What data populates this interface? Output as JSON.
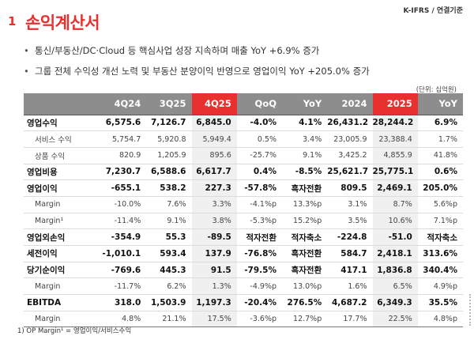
{
  "header": {
    "slide_number": "1",
    "title": "손익계산서",
    "standard": "K-IFRS / 연결기준"
  },
  "bullets": [
    "통신/부동산/DC·Cloud 등 핵심사업 성장 지속하며 매출 YoY +6.9% 증가",
    "그룹 전체 수익성 개선 노력 및 부동산 분양이익 반영으로 영업이익 YoY +205.0% 증가"
  ],
  "unit_label": "(단위: 십억원)",
  "table": {
    "columns": [
      "",
      "4Q24",
      "3Q25",
      "4Q25",
      "QoQ",
      "YoY",
      "2024",
      "2025",
      "YoY"
    ],
    "highlight_color": "#e8302f",
    "rows": [
      {
        "label": "영업수익",
        "cells": [
          "6,575.6",
          "7,126.7",
          "6,845.0",
          "-4.0%",
          "4.1%",
          "26,431.2",
          "28,244.2",
          "6.9%"
        ]
      },
      {
        "label": "서비스 수익",
        "cells": [
          "5,754.7",
          "5,920.8",
          "5,949.4",
          "0.5%",
          "3.4%",
          "23,005.9",
          "23,388.4",
          "1.7%"
        ]
      },
      {
        "label": "상품 수익",
        "cells": [
          "820.9",
          "1,205.9",
          "895.6",
          "-25.7%",
          "9.1%",
          "3,425.2",
          "4,855.9",
          "41.8%"
        ]
      },
      {
        "label": "영업비용",
        "cells": [
          "7,230.7",
          "6,588.6",
          "6,617.7",
          "0.4%",
          "-8.5%",
          "25,621.7",
          "25,775.1",
          "0.6%"
        ]
      },
      {
        "label": "영업이익",
        "cells": [
          "-655.1",
          "538.2",
          "227.3",
          "-57.8%",
          "흑자전환",
          "809.5",
          "2,469.1",
          "205.0%"
        ]
      },
      {
        "label": "Margin",
        "cells": [
          "-10.0%",
          "7.6%",
          "3.3%",
          "-4.1%p",
          "13.3%p",
          "3.1%",
          "8.7%",
          "5.6%p"
        ]
      },
      {
        "label": "Margin¹",
        "cells": [
          "-11.4%",
          "9.1%",
          "3.8%",
          "-5.3%p",
          "15.2%p",
          "3.5%",
          "10.6%",
          "7.1%p"
        ]
      },
      {
        "label": "영업외손익",
        "cells": [
          "-354.9",
          "55.3",
          "-89.5",
          "적자전환",
          "적자축소",
          "-224.8",
          "-51.0",
          "적자축소"
        ]
      },
      {
        "label": "세전이익",
        "cells": [
          "-1,010.1",
          "593.4",
          "137.9",
          "-76.8%",
          "흑자전환",
          "584.7",
          "2,418.1",
          "313.6%"
        ]
      },
      {
        "label": "당기순이익",
        "cells": [
          "-769.6",
          "445.3",
          "91.5",
          "-79.5%",
          "흑자전환",
          "417.1",
          "1,836.8",
          "340.4%"
        ]
      },
      {
        "label": "Margin",
        "cells": [
          "-11.7%",
          "6.2%",
          "1.3%",
          "-4.9%p",
          "13.0%p",
          "1.6%",
          "6.5%",
          "4.9%p"
        ]
      },
      {
        "label": "EBITDA",
        "cells": [
          "318.0",
          "1,503.9",
          "1,197.3",
          "-20.4%",
          "276.5%",
          "4,687.2",
          "6,349.3",
          "35.5%"
        ]
      },
      {
        "label": "Margin",
        "cells": [
          "4.8%",
          "21.1%",
          "17.5%",
          "-3.6%p",
          "12.7%p",
          "17.7%",
          "22.5%",
          "4.8%p"
        ]
      }
    ]
  },
  "footnote": "1) OP Margin¹ = 영업이익/서비스수익"
}
